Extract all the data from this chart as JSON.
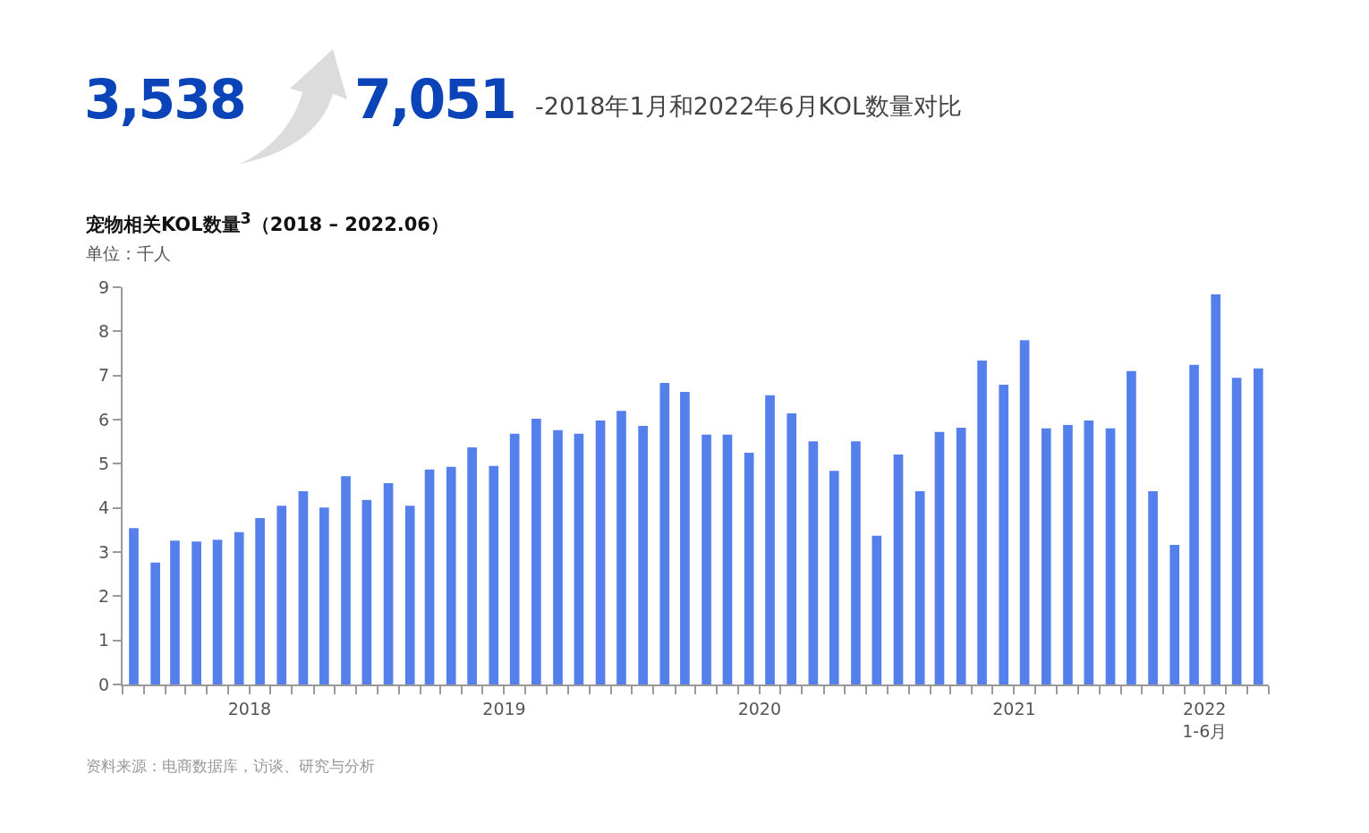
{
  "chart_data": {
    "type": "bar",
    "title": "宠物相关KOL数量$^{3}$（2018 – 2022.06）",
    "subtitle": "单位：千人",
    "annotations": [
      "3,538",
      "7,051",
      "-2018年1月和2022年6月KOL数量对比",
      "资料来源：电商数据库，访谈、研究与分析"
    ],
    "x": [
      "2018-01",
      "2018-02",
      "2018-03",
      "2018-04",
      "2018-05",
      "2018-06",
      "2018-07",
      "2018-08",
      "2018-09",
      "2018-10",
      "2018-11",
      "2018-12",
      "2019-01",
      "2019-02",
      "2019-03",
      "2019-04",
      "2019-05",
      "2019-06",
      "2019-07",
      "2019-08",
      "2019-09",
      "2019-10",
      "2019-11",
      "2019-12",
      "2020-01",
      "2020-02",
      "2020-03",
      "2020-04",
      "2020-05",
      "2020-06",
      "2020-07",
      "2020-08",
      "2020-09",
      "2020-10",
      "2020-11",
      "2020-12",
      "2021-01",
      "2021-02",
      "2021-03",
      "2021-04",
      "2021-05",
      "2021-06",
      "2021-07",
      "2021-08",
      "2021-09",
      "2021-10",
      "2021-11",
      "2021-12",
      "2022-01",
      "2022-02",
      "2022-03",
      "2022-04",
      "2022-05",
      "2022-06"
    ],
    "values": [
      3.54,
      2.76,
      3.26,
      3.24,
      3.28,
      3.45,
      3.77,
      4.05,
      4.38,
      4.01,
      4.72,
      4.18,
      4.56,
      4.05,
      4.87,
      4.93,
      5.37,
      4.95,
      5.68,
      6.02,
      5.76,
      5.68,
      5.98,
      6.2,
      5.86,
      6.83,
      6.63,
      5.66,
      5.66,
      5.25,
      6.55,
      6.14,
      5.51,
      4.84,
      5.51,
      3.37,
      5.21,
      4.38,
      5.72,
      5.82,
      7.34,
      6.79,
      7.8,
      5.8,
      5.88,
      5.98,
      5.8,
      7.1,
      4.38,
      3.16,
      7.24,
      8.84,
      6.95,
      7.16
    ],
    "color": "#5580ec",
    "xlim": [
      "2017-12-16",
      "2022-06-16"
    ],
    "xticks": [
      {
        "value": "2017-12-16",
        "label": null
      },
      {
        "value": "2018-01-16",
        "label": null
      },
      {
        "value": "2018-02-16",
        "label": null
      },
      {
        "value": "2018-03-16",
        "label": null
      },
      {
        "value": "2018-04-16",
        "label": null
      },
      {
        "value": "2018-05-16",
        "label": null
      },
      {
        "value": "2018-06-16",
        "label": "2018"
      },
      {
        "value": "2018-07-16",
        "label": null
      },
      {
        "value": "2018-08-16",
        "label": null
      },
      {
        "value": "2018-09-16",
        "label": null
      },
      {
        "value": "2018-10-16",
        "label": null
      },
      {
        "value": "2018-11-16",
        "label": null
      },
      {
        "value": "2018-12-16",
        "label": null
      },
      {
        "value": "2019-01-16",
        "label": null
      },
      {
        "value": "2019-02-16",
        "label": null
      },
      {
        "value": "2019-03-16",
        "label": null
      },
      {
        "value": "2019-04-16",
        "label": null
      },
      {
        "value": "2019-05-16",
        "label": null
      },
      {
        "value": "2019-06-16",
        "label": "2019"
      },
      {
        "value": "2019-07-16",
        "label": null
      },
      {
        "value": "2019-08-16",
        "label": null
      },
      {
        "value": "2019-09-16",
        "label": null
      },
      {
        "value": "2019-10-16",
        "label": null
      },
      {
        "value": "2019-11-16",
        "label": null
      },
      {
        "value": "2019-12-16",
        "label": null
      },
      {
        "value": "2020-01-16",
        "label": null
      },
      {
        "value": "2020-02-16",
        "label": null
      },
      {
        "value": "2020-03-16",
        "label": null
      },
      {
        "value": "2020-04-16",
        "label": null
      },
      {
        "value": "2020-05-16",
        "label": null
      },
      {
        "value": "2020-06-16",
        "label": "2020"
      },
      {
        "value": "2020-07-16",
        "label": null
      },
      {
        "value": "2020-08-16",
        "label": null
      },
      {
        "value": "2020-09-16",
        "label": null
      },
      {
        "value": "2020-10-16",
        "label": null
      },
      {
        "value": "2020-11-16",
        "label": null
      },
      {
        "value": "2020-12-16",
        "label": null
      },
      {
        "value": "2021-01-16",
        "label": null
      },
      {
        "value": "2021-02-16",
        "label": null
      },
      {
        "value": "2021-03-16",
        "label": null
      },
      {
        "value": "2021-04-16",
        "label": null
      },
      {
        "value": "2021-05-16",
        "label": null
      },
      {
        "value": "2021-06-16",
        "label": "2021"
      },
      {
        "value": "2021-07-16",
        "label": null
      },
      {
        "value": "2021-08-16",
        "label": null
      },
      {
        "value": "2021-09-16",
        "label": null
      },
      {
        "value": "2021-10-16",
        "label": null
      },
      {
        "value": "2021-11-16",
        "label": null
      },
      {
        "value": "2021-12-16",
        "label": null
      },
      {
        "value": "2022-01-16",
        "label": null
      },
      {
        "value": "2022-02-16",
        "label": null
      },
      {
        "value": "2022-03-16",
        "label": "2022\n1-6月"
      },
      {
        "value": "2022-04-16",
        "label": null
      },
      {
        "value": "2022-05-16",
        "label": null
      },
      {
        "value": "2022-06-16",
        "label": null
      }
    ],
    "ylim": [
      0,
      9
    ],
    "yticks": [
      0,
      1,
      2,
      3,
      4,
      5,
      6,
      7,
      8,
      9
    ],
    "grid": false
  }
}
